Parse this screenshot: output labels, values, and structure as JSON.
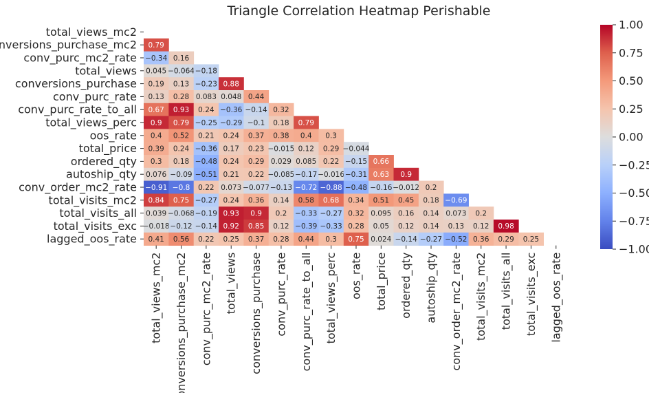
{
  "chart_data": {
    "type": "heatmap",
    "title": "Triangle Correlation Heatmap Perishable",
    "labels": [
      "total_views_mc2",
      "conversions_purchase_mc2",
      "conv_purc_mc2_rate",
      "total_views",
      "conversions_purchase",
      "conv_purc_rate",
      "conv_purc_rate_to_all",
      "total_views_perc",
      "oos_rate",
      "total_price",
      "ordered_qty",
      "autoship_qty",
      "conv_order_mc2_rate",
      "total_visits_mc2",
      "total_visits_all",
      "total_visits_exc",
      "lagged_oos_rate"
    ],
    "values": [
      [
        0.79
      ],
      [
        -0.34,
        0.16
      ],
      [
        0.045,
        -0.064,
        -0.18
      ],
      [
        0.19,
        0.13,
        -0.23,
        0.88
      ],
      [
        0.13,
        0.28,
        0.083,
        0.048,
        0.44
      ],
      [
        0.67,
        0.93,
        0.24,
        -0.36,
        -0.14,
        0.32
      ],
      [
        0.9,
        0.79,
        -0.25,
        -0.29,
        -0.1,
        0.18,
        0.79
      ],
      [
        0.4,
        0.52,
        0.21,
        0.24,
        0.37,
        0.38,
        0.4,
        0.3
      ],
      [
        0.39,
        0.24,
        -0.36,
        0.17,
        0.23,
        -0.015,
        0.12,
        0.29,
        -0.044
      ],
      [
        0.3,
        0.18,
        -0.48,
        0.24,
        0.29,
        0.029,
        0.085,
        0.22,
        -0.15,
        0.66
      ],
      [
        0.076,
        -0.09,
        -0.51,
        0.21,
        0.22,
        -0.085,
        -0.17,
        -0.016,
        -0.31,
        0.63,
        0.9
      ],
      [
        -0.91,
        -0.8,
        0.22,
        0.073,
        -0.077,
        -0.13,
        -0.72,
        -0.88,
        -0.48,
        -0.16,
        -0.012,
        0.2
      ],
      [
        0.84,
        0.75,
        -0.27,
        0.24,
        0.36,
        0.14,
        0.58,
        0.68,
        0.34,
        0.51,
        0.45,
        0.18,
        -0.69
      ],
      [
        0.039,
        -0.068,
        -0.19,
        0.93,
        0.9,
        0.2,
        -0.33,
        -0.27,
        0.32,
        0.095,
        0.16,
        0.14,
        0.073,
        0.2
      ],
      [
        -0.018,
        -0.12,
        -0.14,
        0.92,
        0.85,
        0.12,
        -0.39,
        -0.33,
        0.28,
        0.05,
        0.12,
        0.14,
        0.13,
        0.12,
        0.98
      ],
      [
        0.41,
        0.56,
        0.22,
        0.25,
        0.37,
        0.28,
        0.44,
        0.3,
        0.75,
        0.024,
        -0.14,
        -0.27,
        -0.52,
        0.36,
        0.29,
        0.25
      ]
    ],
    "colorscale": "coolwarm",
    "vmin": -1.0,
    "vmax": 1.0,
    "colorbar_ticks": [
      "1.00",
      "0.75",
      "0.50",
      "0.25",
      "0.00",
      "−0.25",
      "−0.50",
      "−0.75",
      "−1.00"
    ],
    "colorbar_tick_values": [
      1.0,
      0.75,
      0.5,
      0.25,
      0.0,
      -0.25,
      -0.5,
      -0.75,
      -1.0
    ],
    "mask": "upper-triangle-including-diagonal"
  }
}
